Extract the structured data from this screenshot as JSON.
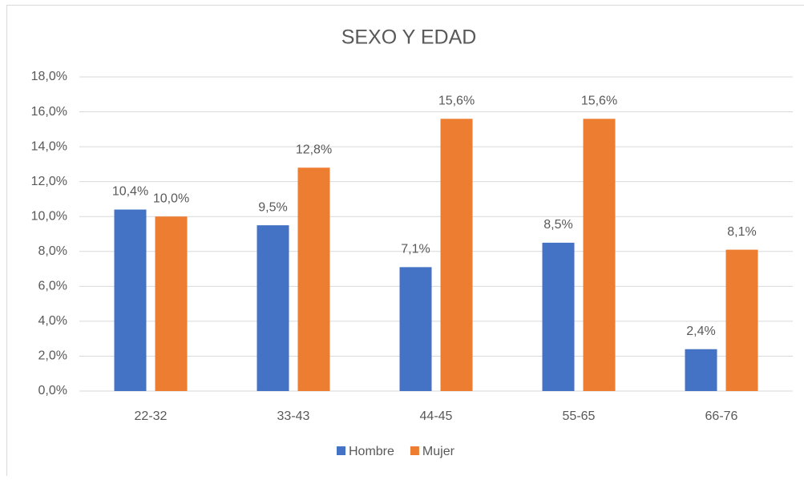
{
  "chart_data": {
    "type": "bar",
    "title": "SEXO Y EDAD",
    "categories": [
      "22-32",
      "33-43",
      "44-45",
      "55-65",
      "66-76"
    ],
    "series": [
      {
        "name": "Hombre",
        "color": "#4472c4",
        "values": [
          10.4,
          9.5,
          7.1,
          8.5,
          2.4
        ],
        "value_labels": [
          "10,4%",
          "9,5%",
          "7,1%",
          "8,5%",
          "2,4%"
        ]
      },
      {
        "name": "Mujer",
        "color": "#ed7d31",
        "values": [
          10.0,
          12.8,
          15.6,
          15.6,
          8.1
        ],
        "value_labels": [
          "10,0%",
          "12,8%",
          "15,6%",
          "15,6%",
          "8,1%"
        ]
      }
    ],
    "ylim": [
      0,
      18
    ],
    "yticks": [
      {
        "value": 0,
        "label": "0,0%"
      },
      {
        "value": 2,
        "label": "2,0%"
      },
      {
        "value": 4,
        "label": "4,0%"
      },
      {
        "value": 6,
        "label": "6,0%"
      },
      {
        "value": 8,
        "label": "8,0%"
      },
      {
        "value": 10,
        "label": "10,0%"
      },
      {
        "value": 12,
        "label": "12,0%"
      },
      {
        "value": 14,
        "label": "14,0%"
      },
      {
        "value": 16,
        "label": "16,0%"
      },
      {
        "value": 18,
        "label": "18,0%"
      }
    ],
    "grid": true,
    "legend": "bottom"
  }
}
